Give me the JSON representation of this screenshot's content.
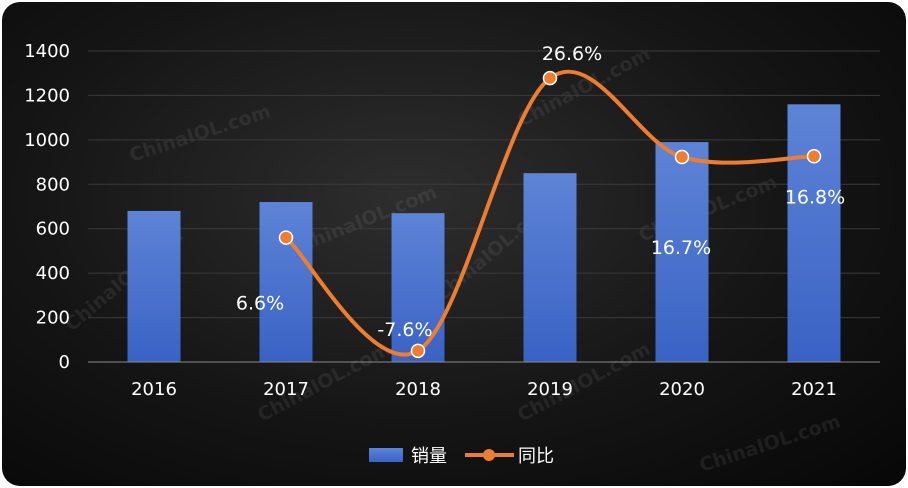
{
  "chart_data": {
    "type": "bar",
    "categories": [
      "2016",
      "2017",
      "2018",
      "2019",
      "2020",
      "2021"
    ],
    "series": [
      {
        "name": "销量",
        "type": "bar",
        "values": [
          680,
          720,
          670,
          850,
          990,
          1160
        ]
      },
      {
        "name": "同比",
        "type": "line",
        "values": [
          null,
          6.6,
          -7.6,
          26.6,
          16.7,
          16.8
        ],
        "labels": [
          "",
          "6.6%",
          "-7.6%",
          "26.6%",
          "16.7%",
          "16.8%"
        ]
      }
    ],
    "y_ticks": [
      "0",
      "200",
      "400",
      "600",
      "800",
      "1000",
      "1200",
      "1400"
    ],
    "ylim": [
      0,
      1400
    ],
    "y2lim": [
      -9,
      30
    ],
    "grid": true,
    "legend_position": "bottom",
    "watermark": "ChinaIOL.com",
    "colors": {
      "bar_top": "#5d84d6",
      "bar_bottom": "#3a62c4",
      "line": "#ed7d31",
      "text": "#ffffff",
      "grid": "#3a3a3a"
    }
  }
}
